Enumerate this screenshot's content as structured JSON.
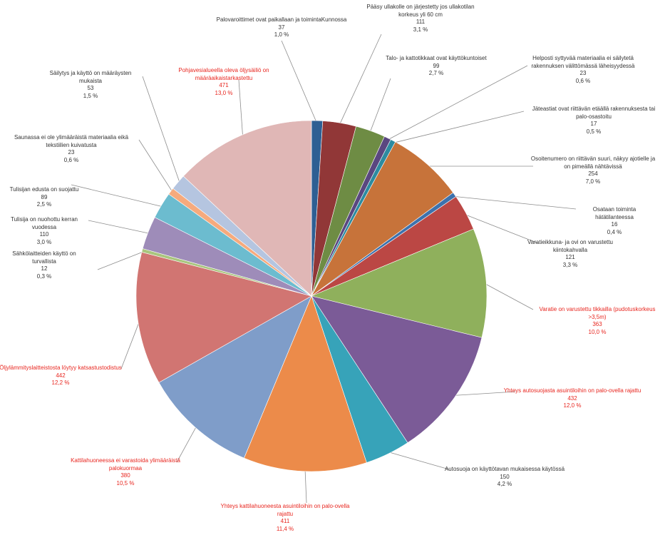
{
  "chart_data": {
    "type": "pie",
    "start_angle_deg": 0,
    "direction": "clockwise",
    "slices": [
      {
        "label": "Palovaroittimet ovat paikallaan ja toimintaKunnossa",
        "value": 37,
        "percent": "1,0 %",
        "color": "#2e5f93",
        "highlight": false
      },
      {
        "label": "Pääsy ullakolle on järjestetty jos ullakotilan korkeus yli 60 cm",
        "value": 111,
        "percent": "3,1 %",
        "color": "#913737",
        "highlight": false
      },
      {
        "label": "Talo- ja kattotikkaat ovat käyttökuntoiset",
        "value": 99,
        "percent": "2,7 %",
        "color": "#6e8c44",
        "highlight": false
      },
      {
        "label": "Helposti syttyvää materiaalia ei säilytetä rakennuksen välittömässä läheisyydessä",
        "value": 23,
        "percent": "0,6 %",
        "color": "#5a4780",
        "highlight": false
      },
      {
        "label": "Jäteastiat ovat riittävän etäällä rakennuksesta tai palo-osastoitu",
        "value": 17,
        "percent": "0,5 %",
        "color": "#2d8ba0",
        "highlight": false
      },
      {
        "label": "Osoitenumero on riittävän suuri, näkyy ajotielle ja on pimeällä nähtävissä",
        "value": 254,
        "percent": "7,0 %",
        "color": "#c7733a",
        "highlight": false
      },
      {
        "label": "Osataan toiminta hätätilanteessa",
        "value": 16,
        "percent": "0,4 %",
        "color": "#3d72ad",
        "highlight": false
      },
      {
        "label": "Varatieikkuna- ja ovi on varustettu kiintokahvalla",
        "value": 121,
        "percent": "3,3 %",
        "color": "#bb4744",
        "highlight": false
      },
      {
        "label": "Varatie on varustettu tikkailla (pudotuskorkeus >3,5m)",
        "value": 363,
        "percent": "10,0 %",
        "color": "#8fb05c",
        "highlight": true
      },
      {
        "label": "Yhteys autosuojasta asuintiloihin on palo-ovella rajattu",
        "value": 432,
        "percent": "12,0 %",
        "color": "#7b5b97",
        "highlight": true
      },
      {
        "label": "Autosuoja on käyttötavan mukaisessa käytössä",
        "value": 150,
        "percent": "4,2 %",
        "color": "#37a3b9",
        "highlight": false
      },
      {
        "label": "Yhteys kattilahuoneesta asuintiloihin on palo-ovella rajattu",
        "value": 411,
        "percent": "11,4 %",
        "color": "#ec8b4a",
        "highlight": true
      },
      {
        "label": "Kattilahuoneessa ei varastoida ylimääräistä palokuormaa",
        "value": 380,
        "percent": "10,5 %",
        "color": "#7f9dc9",
        "highlight": true
      },
      {
        "label": "Öljylämmityslaitteistosta löytyy katsastustodistus",
        "value": 442,
        "percent": "12,2 %",
        "color": "#d17572",
        "highlight": true
      },
      {
        "label": "Sähkölaitteiden käyttö on turvallista",
        "value": 12,
        "percent": "0,3 %",
        "color": "#a9c57e",
        "highlight": false
      },
      {
        "label": "Tulisija on nuohottu kerran vuodessa",
        "value": 110,
        "percent": "3,0 %",
        "color": "#9e8cb9",
        "highlight": false
      },
      {
        "label": "Tulisijan edusta on suojattu",
        "value": 89,
        "percent": "2,5 %",
        "color": "#6cbccf",
        "highlight": false
      },
      {
        "label": "Saunassa ei ole ylimääräistä materiaalia eikä tekstiilien kuivatusta",
        "value": 23,
        "percent": "0,6 %",
        "color": "#f6aa7d",
        "highlight": false
      },
      {
        "label": "Säilytys ja käyttö on määräysten mukaista",
        "value": 53,
        "percent": "1,5 %",
        "color": "#b5c5e0",
        "highlight": false
      },
      {
        "label": "Pohjavesialueella oleva öljysäiliö on määräaikaistarkastettu",
        "value": 471,
        "percent": "13,0 %",
        "color": "#e0b7b6",
        "highlight": true
      }
    ]
  }
}
